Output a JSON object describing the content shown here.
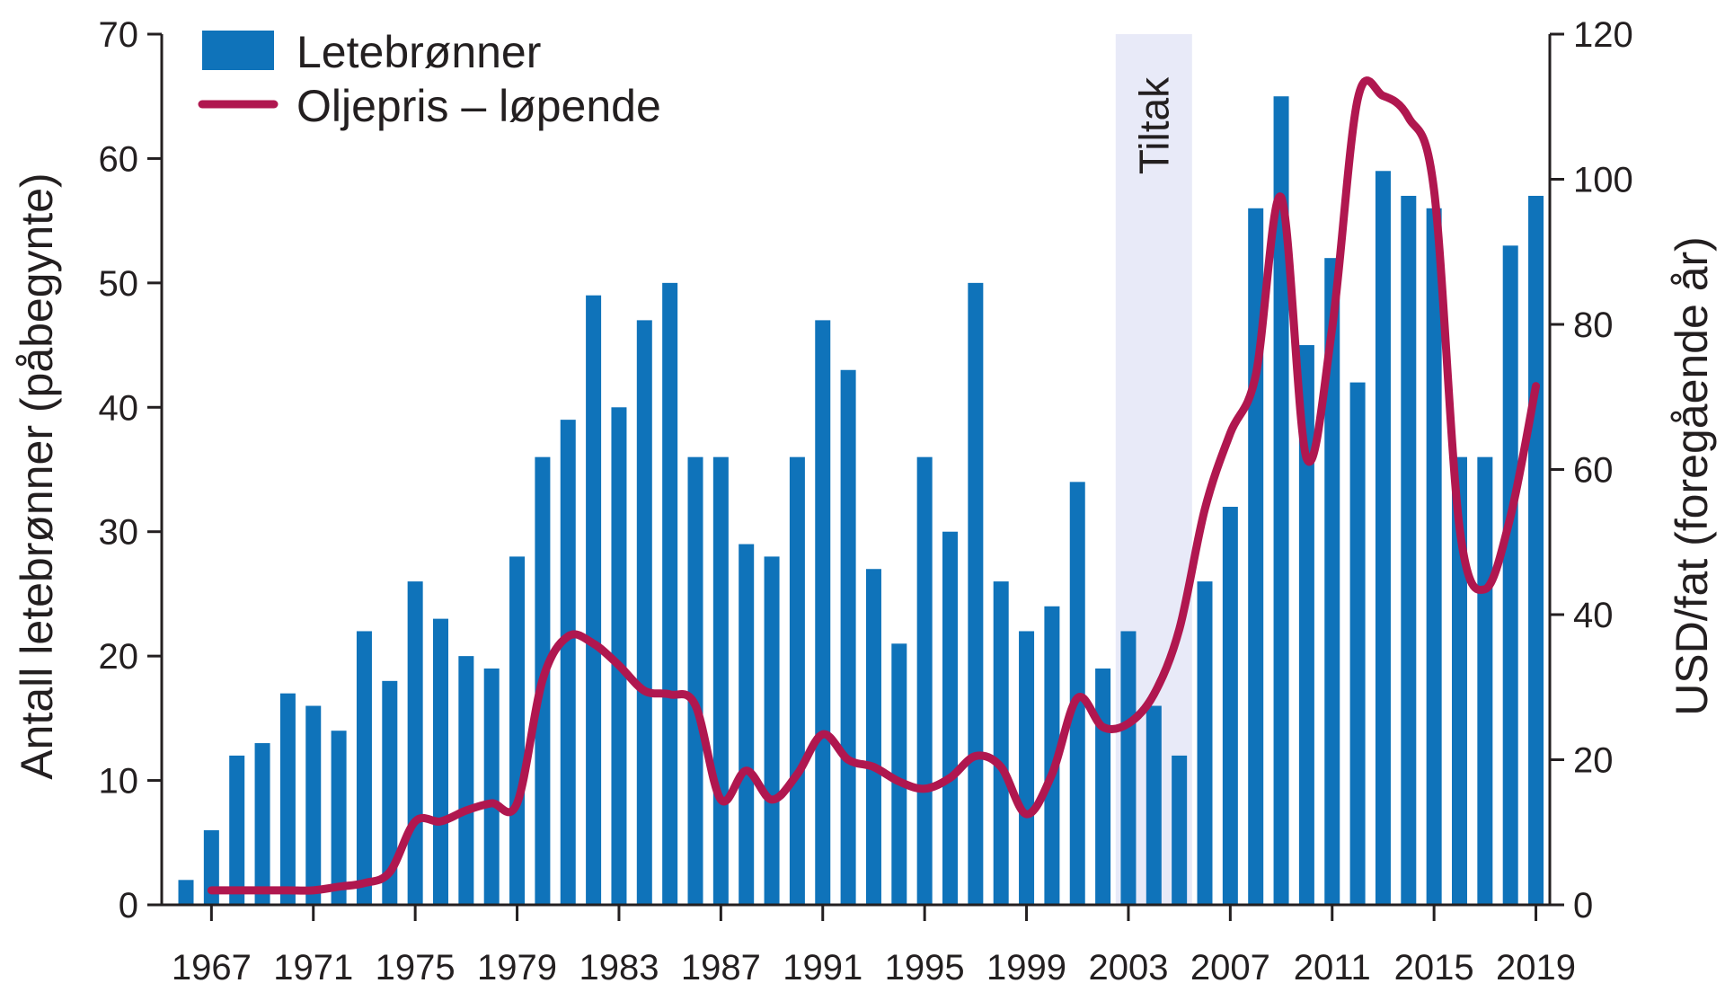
{
  "chart_data": {
    "type": "bar",
    "x": [
      1966,
      1967,
      1968,
      1969,
      1970,
      1971,
      1972,
      1973,
      1974,
      1975,
      1976,
      1977,
      1978,
      1979,
      1980,
      1981,
      1982,
      1983,
      1984,
      1985,
      1986,
      1987,
      1988,
      1989,
      1990,
      1991,
      1992,
      1993,
      1994,
      1995,
      1996,
      1997,
      1998,
      1999,
      2000,
      2001,
      2002,
      2003,
      2004,
      2005,
      2006,
      2007,
      2008,
      2009,
      2010,
      2011,
      2012,
      2013,
      2014,
      2015,
      2016,
      2017,
      2018,
      2019
    ],
    "x_tick_labels": [
      "1967",
      "1971",
      "1975",
      "1979",
      "1983",
      "1987",
      "1991",
      "1995",
      "1999",
      "2003",
      "2007",
      "2011",
      "2015",
      "2019"
    ],
    "series": [
      {
        "name": "Letebrønner",
        "type": "bar",
        "axis": "left",
        "color": "#0f73ba",
        "values": [
          2,
          6,
          12,
          13,
          17,
          16,
          14,
          22,
          18,
          26,
          23,
          20,
          19,
          28,
          36,
          39,
          49,
          40,
          47,
          50,
          36,
          36,
          29,
          28,
          36,
          47,
          43,
          27,
          21,
          36,
          30,
          50,
          26,
          22,
          24,
          34,
          19,
          22,
          16,
          12,
          26,
          32,
          56,
          65,
          45,
          52,
          42,
          59,
          57,
          56,
          36,
          36,
          53,
          57
        ]
      },
      {
        "name": "Oljepris – løpende",
        "type": "line",
        "axis": "right",
        "color": "#b0174f",
        "x": [
          1967,
          1968,
          1969,
          1970,
          1971,
          1972,
          1973,
          1974,
          1975,
          1976,
          1977,
          1978,
          1979,
          1980,
          1981,
          1982,
          1983,
          1984,
          1985,
          1986,
          1987,
          1988,
          1989,
          1990,
          1991,
          1992,
          1993,
          1994,
          1995,
          1996,
          1997,
          1998,
          1999,
          2000,
          2001,
          2002,
          2003,
          2004,
          2005,
          2006,
          2007,
          2008,
          2009,
          2010,
          2011,
          2012,
          2013,
          2014,
          2015,
          2016,
          2017,
          2018,
          2019
        ],
        "values": [
          2,
          2,
          2,
          2,
          2,
          2.5,
          3,
          4.5,
          11.5,
          11.5,
          13,
          14,
          14,
          31,
          37,
          36,
          33,
          29.5,
          29,
          27.5,
          14.5,
          18.5,
          14.5,
          18,
          23.5,
          20,
          19,
          17,
          16,
          17.5,
          20.5,
          19,
          12.5,
          18,
          28.5,
          24.5,
          25,
          29,
          38,
          54.5,
          65,
          73,
          97.5,
          61.5,
          79.5,
          111,
          111.5,
          108.5,
          98.5,
          52,
          43.5,
          53.5,
          71.5
        ]
      }
    ],
    "ylabel_left": "Antall letebrønner (påbegynte)",
    "ylabel_right": "USD/fat (foregående år)",
    "ylim_left": [
      0,
      70
    ],
    "ylim_right": [
      0,
      120
    ],
    "yticks_left": [
      "0",
      "10",
      "20",
      "30",
      "40",
      "50",
      "60",
      "70"
    ],
    "yticks_right": [
      "0",
      "20",
      "40",
      "60",
      "80",
      "100",
      "120"
    ],
    "shaded_region": {
      "label": "Tiltak",
      "x_range": [
        2002.5,
        2005.5
      ],
      "color": "#e8eaf8"
    },
    "legend": {
      "placement": "top-left",
      "entries": [
        "Letebrønner",
        "Oljepris – løpende"
      ]
    },
    "grid": false
  }
}
